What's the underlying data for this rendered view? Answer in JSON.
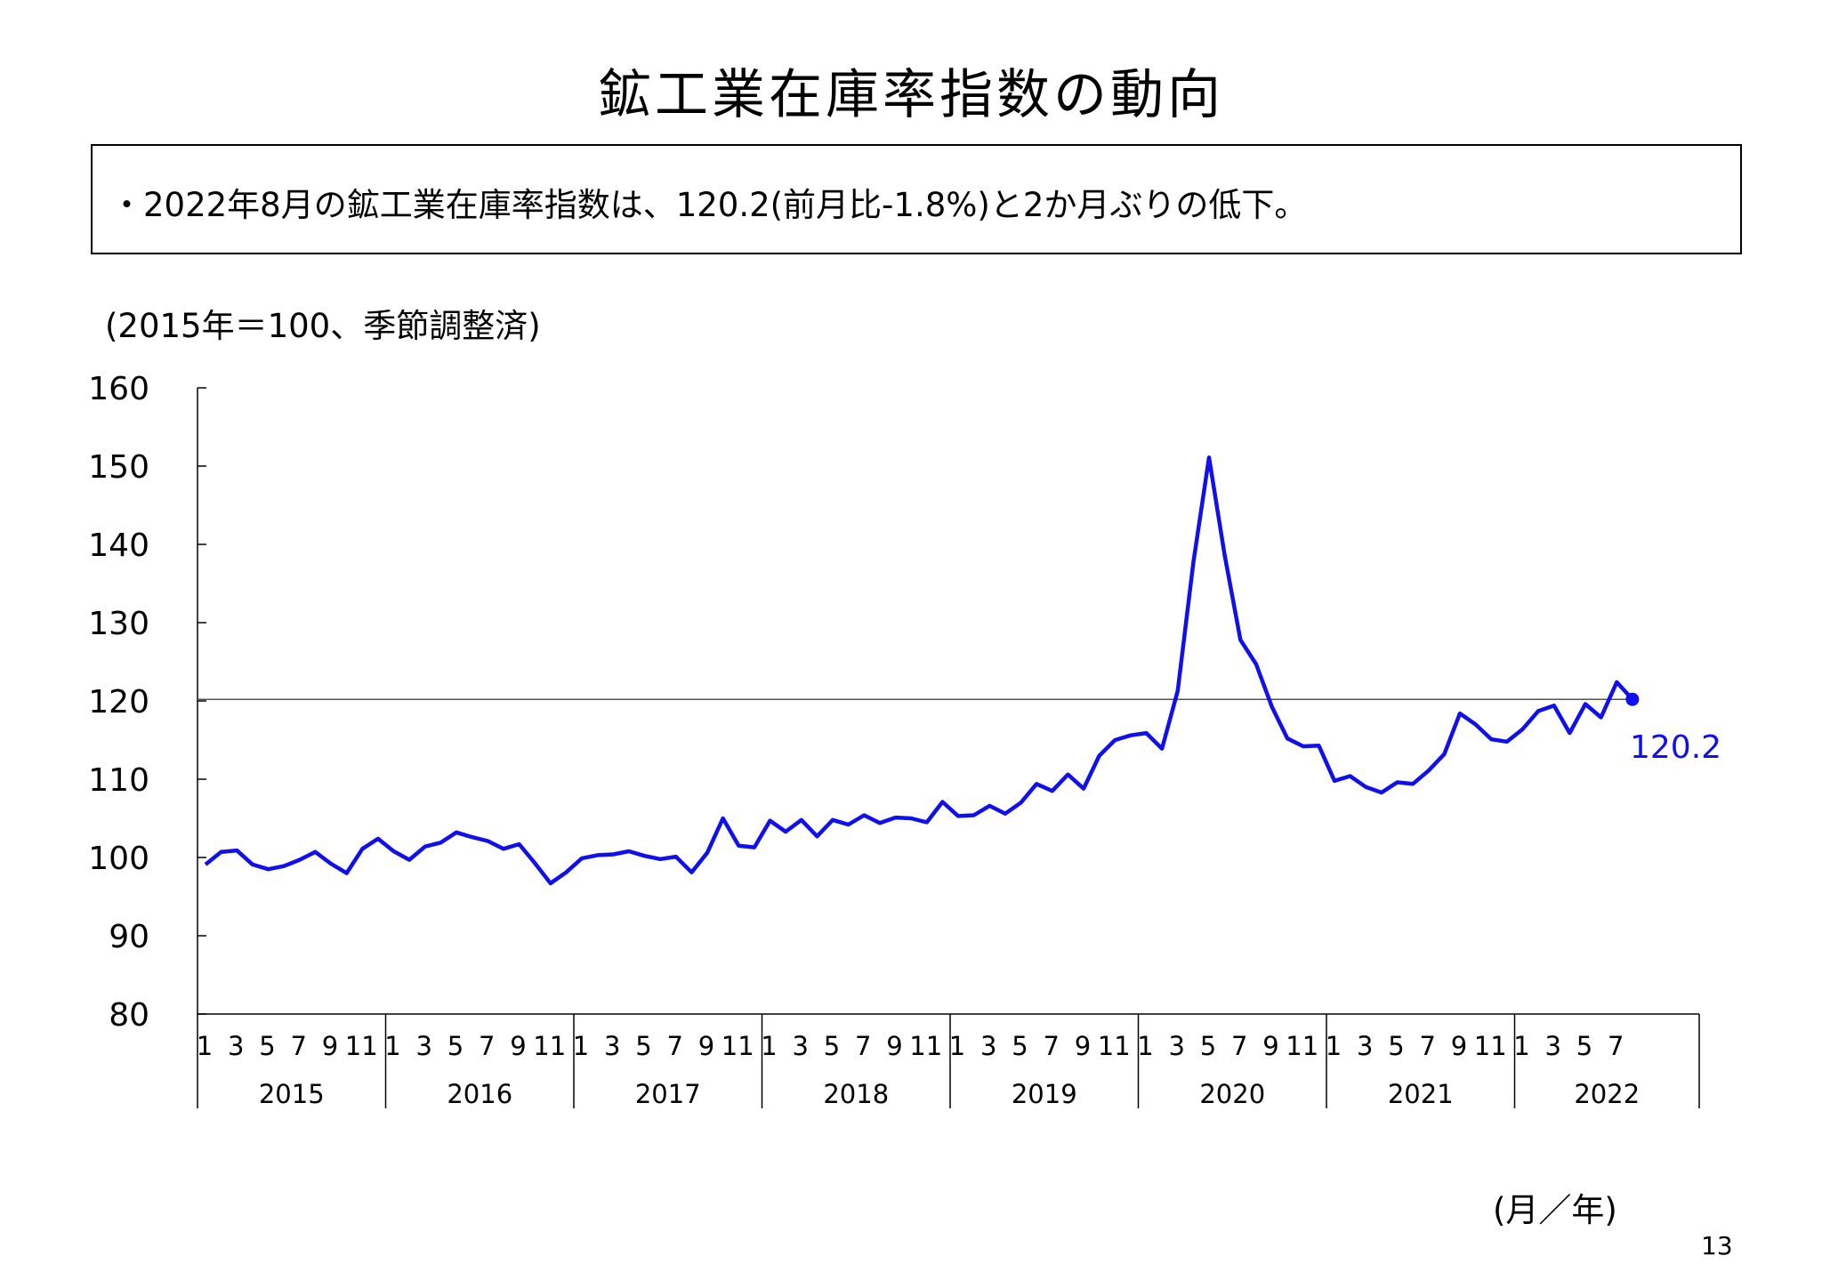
{
  "header": {
    "title": "鉱工業在庫率指数の動向",
    "summary": "・2022年8月の鉱工業在庫率指数は、120.2(前月比-1.8%)と2か月ぶりの低下。"
  },
  "footer": {
    "page_number": "13"
  },
  "chart_data": {
    "type": "line",
    "unit_label": "(2015年＝100、季節調整済)",
    "xlabel": "(月／年)",
    "ylim": [
      80,
      160
    ],
    "y_ticks": [
      "80",
      "90",
      "100",
      "110",
      "120",
      "130",
      "140",
      "150",
      "160"
    ],
    "reference_line": 120.2,
    "end_label": "120.2",
    "month_ticks": [
      "1",
      "3",
      "5",
      "7",
      "9",
      "11"
    ],
    "year_labels": [
      "2015",
      "2016",
      "2017",
      "2018",
      "2019",
      "2020",
      "2021",
      "2022"
    ],
    "line_color": "#1010ee",
    "x": [
      "2015-01",
      "2015-02",
      "2015-03",
      "2015-04",
      "2015-05",
      "2015-06",
      "2015-07",
      "2015-08",
      "2015-09",
      "2015-10",
      "2015-11",
      "2015-12",
      "2016-01",
      "2016-02",
      "2016-03",
      "2016-04",
      "2016-05",
      "2016-06",
      "2016-07",
      "2016-08",
      "2016-09",
      "2016-10",
      "2016-11",
      "2016-12",
      "2017-01",
      "2017-02",
      "2017-03",
      "2017-04",
      "2017-05",
      "2017-06",
      "2017-07",
      "2017-08",
      "2017-09",
      "2017-10",
      "2017-11",
      "2017-12",
      "2018-01",
      "2018-02",
      "2018-03",
      "2018-04",
      "2018-05",
      "2018-06",
      "2018-07",
      "2018-08",
      "2018-09",
      "2018-10",
      "2018-11",
      "2018-12",
      "2019-01",
      "2019-02",
      "2019-03",
      "2019-04",
      "2019-05",
      "2019-06",
      "2019-07",
      "2019-08",
      "2019-09",
      "2019-10",
      "2019-11",
      "2019-12",
      "2020-01",
      "2020-02",
      "2020-03",
      "2020-04",
      "2020-05",
      "2020-06",
      "2020-07",
      "2020-08",
      "2020-09",
      "2020-10",
      "2020-11",
      "2020-12",
      "2021-01",
      "2021-02",
      "2021-03",
      "2021-04",
      "2021-05",
      "2021-06",
      "2021-07",
      "2021-08",
      "2021-09",
      "2021-10",
      "2021-11",
      "2021-12",
      "2022-01",
      "2022-02",
      "2022-03",
      "2022-04",
      "2022-05",
      "2022-06",
      "2022-07",
      "2022-08"
    ],
    "values": [
      99.1,
      100.7,
      100.9,
      99.1,
      98.5,
      98.9,
      99.7,
      100.7,
      99.2,
      98.0,
      101.1,
      102.4,
      100.8,
      99.7,
      101.4,
      101.9,
      103.2,
      102.6,
      102.1,
      101.1,
      101.7,
      99.3,
      96.7,
      98.1,
      99.9,
      100.3,
      100.4,
      100.8,
      100.2,
      99.8,
      100.1,
      98.1,
      100.6,
      105.0,
      101.5,
      101.3,
      104.7,
      103.3,
      104.8,
      102.7,
      104.8,
      104.2,
      105.4,
      104.4,
      105.1,
      105.0,
      104.5,
      107.1,
      105.3,
      105.4,
      106.6,
      105.6,
      107.0,
      109.4,
      108.5,
      110.6,
      108.8,
      113.0,
      115.0,
      115.6,
      115.9,
      113.9,
      121.3,
      137.7,
      151.1,
      138.6,
      127.8,
      124.7,
      119.3,
      115.2,
      114.2,
      114.3,
      109.8,
      110.4,
      109.0,
      108.3,
      109.6,
      109.4,
      111.1,
      113.2,
      118.4,
      117.0,
      115.1,
      114.8,
      116.4,
      118.7,
      119.4,
      115.9,
      119.6,
      117.9,
      122.4,
      120.2
    ]
  }
}
